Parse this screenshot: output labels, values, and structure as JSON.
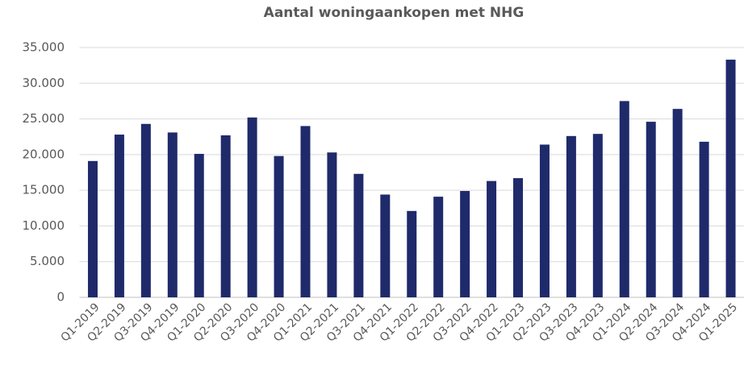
{
  "chart_data": {
    "type": "bar",
    "title": "Aantal woningaankopen met NHG",
    "categories": [
      "Q1-2019",
      "Q2-2019",
      "Q3-2019",
      "Q4-2019",
      "Q1-2020",
      "Q2-2020",
      "Q3-2020",
      "Q4-2020",
      "Q1-2021",
      "Q2-2021",
      "Q3-2021",
      "Q4-2021",
      "Q1-2022",
      "Q2-2022",
      "Q3-2022",
      "Q4-2022",
      "Q1-2023",
      "Q2-2023",
      "Q3-2023",
      "Q4-2023",
      "Q1-2024",
      "Q2-2024",
      "Q3-2024",
      "Q4-2024",
      "Q1-2025"
    ],
    "values": [
      19100,
      22800,
      24300,
      23100,
      20100,
      22700,
      25200,
      19800,
      24000,
      20300,
      17300,
      14400,
      12100,
      14100,
      14900,
      16300,
      16700,
      21400,
      22600,
      22900,
      27500,
      24600,
      26400,
      21800,
      33300
    ],
    "color": "#1f2a6b",
    "ylim": [
      0,
      35000
    ],
    "yticks": [
      0,
      {
        "value": 5000,
        "label": "5.000"
      },
      {
        "value": 10000,
        "label": "10.000"
      },
      {
        "value": 15000,
        "label": "15.000"
      },
      {
        "value": 20000,
        "label": "20.000"
      },
      {
        "value": 25000,
        "label": "25.000"
      },
      {
        "value": 30000,
        "label": "30.000"
      },
      {
        "value": 35000,
        "label": "35.000"
      }
    ],
    "grid": true
  }
}
